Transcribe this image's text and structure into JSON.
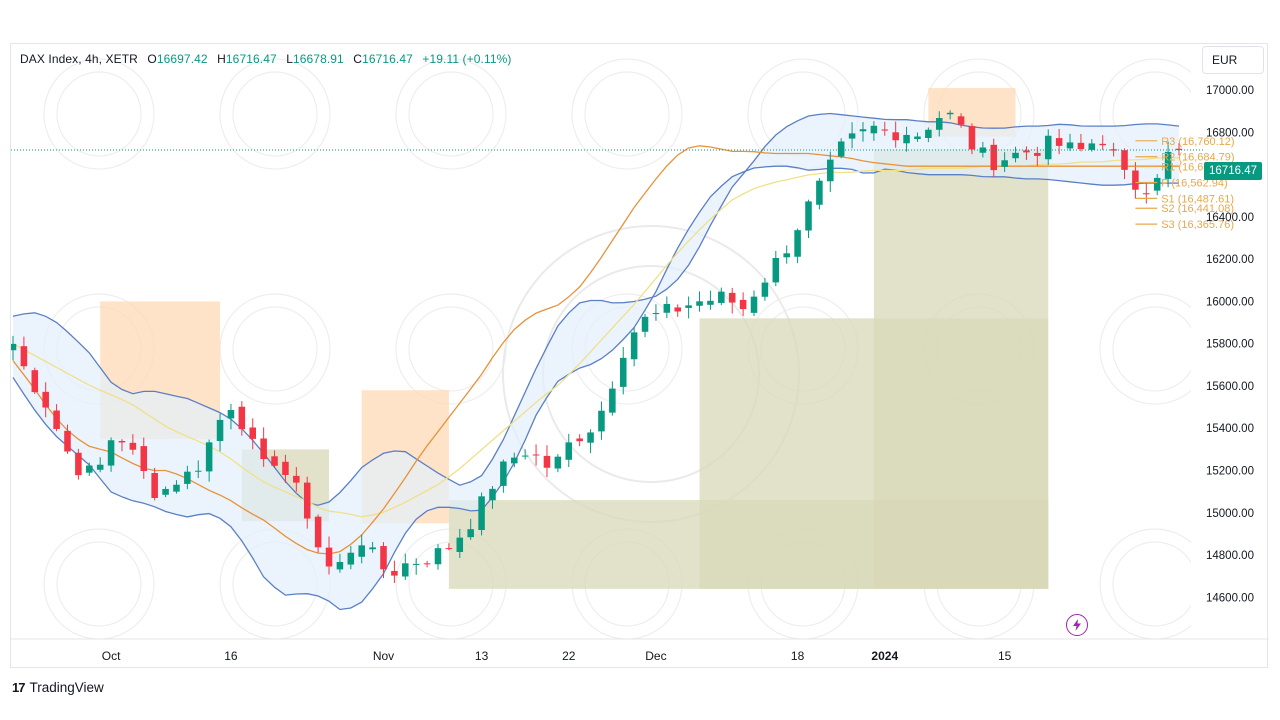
{
  "header": {
    "symbol": "DAX Index, 4h, XETR",
    "open_label": "O",
    "open": "16697.42",
    "high_label": "H",
    "high": "16716.47",
    "low_label": "L",
    "low": "16678.91",
    "close_label": "C",
    "close": "16716.47",
    "change": "+19.11 (+0.11%)"
  },
  "currency_button": {
    "label": "EUR"
  },
  "last_price_tag": "16716.47",
  "footer": {
    "logo_mark": "17",
    "logo_text": "TradingView"
  },
  "icons": {
    "bolt": "lightning-icon",
    "logo": "tradingview-logo-icon"
  },
  "colors": {
    "up": "#089981",
    "down": "#f23645",
    "bollinger": "#5b7fc7",
    "band_fill": "#e3f0fb",
    "ma_fast": "#e8923a",
    "ma_slow": "#f0e08a",
    "supply_zone": "#fdd9b5",
    "demand_zone": "#d8d8b8",
    "pivot": "#e8a84a"
  },
  "chart_data": {
    "type": "candlestick",
    "title": "",
    "timeframe": "4h",
    "y_axis": {
      "ticks": [
        "17000.00",
        "16800.00",
        "16600.00",
        "16400.00",
        "16200.00",
        "16000.00",
        "15800.00",
        "15600.00",
        "15400.00",
        "15200.00",
        "15000.00",
        "14800.00",
        "14600.00"
      ],
      "range": [
        14450,
        17100
      ],
      "position": "right"
    },
    "x_axis": {
      "ticks": [
        {
          "label": "Oct",
          "i": 9
        },
        {
          "label": "16",
          "i": 20
        },
        {
          "label": "Nov",
          "i": 34
        },
        {
          "label": "13",
          "i": 43
        },
        {
          "label": "22",
          "i": 51
        },
        {
          "label": "Dec",
          "i": 59
        },
        {
          "label": "18",
          "i": 72
        },
        {
          "label": "2024",
          "i": 80,
          "bold": true
        },
        {
          "label": "15",
          "i": 91
        }
      ],
      "visible_bars": 108
    },
    "pivot_levels": [
      {
        "name": "R3",
        "value": 16760.12,
        "label": "R3 (16,760.12)"
      },
      {
        "name": "R2",
        "value": 16684.79,
        "label": "R2 (16,684.79)"
      },
      {
        "name": "R1",
        "value": 16638.26,
        "label": "R1 (16,638.26)"
      },
      {
        "name": "P",
        "value": 16562.94,
        "label": "P (16,562.94)"
      },
      {
        "name": "S1",
        "value": 16487.61,
        "label": "S1 (16,487.61)"
      },
      {
        "name": "S2",
        "value": 16441.08,
        "label": "S2 (16,441.08)"
      },
      {
        "name": "S3",
        "value": 16365.76,
        "label": "S3 (16,365.76)"
      }
    ],
    "last_price": 16716.47,
    "close": [
      15800,
      15650,
      15560,
      15400,
      15250,
      15180,
      15220,
      15400,
      15300,
      15180,
      15080,
      15150,
      15180,
      15250,
      15420,
      15520,
      15400,
      15200,
      15260,
      15150,
      15040,
      14830,
      14700,
      14820,
      14880,
      14750,
      14720,
      14760,
      14780,
      14800,
      14850,
      14920,
      15020,
      15150,
      15240,
      15300,
      15260,
      15200,
      15310,
      15380,
      15420,
      15600,
      15800,
      15900,
      15930,
      15950,
      15980,
      16000,
      16010,
      16020,
      15960,
      16060,
      16150,
      16250,
      16380,
      16500,
      16620,
      16740,
      16780,
      16820,
      16800,
      16810,
      16790,
      16850,
      16900,
      16820,
      16720,
      16660,
      16680,
      16700,
      16720,
      16740,
      16740,
      16700,
      16750,
      16780,
      16600,
      16550,
      16550,
      16680,
      16716.47
    ],
    "upper_band": [
      15930,
      15950,
      15920,
      15840,
      15750,
      15620,
      15560,
      15580,
      15560,
      15540,
      15500,
      15460,
      15380,
      15270,
      15150,
      15050,
      15030,
      15110,
      15220,
      15280,
      15300,
      15240,
      15180,
      15130,
      15160,
      15300,
      15500,
      15700,
      15880,
      15990,
      16010,
      15990,
      16000,
      16020,
      16080,
      16200,
      16380,
      16540,
      16650,
      16770,
      16840,
      16880,
      16890,
      16880,
      16870,
      16860,
      16860,
      16850,
      16850,
      16830,
      16820,
      16820,
      16830,
      16830,
      16840,
      16830,
      16830,
      16830,
      16840,
      16840,
      16830
    ],
    "lower_band": [
      15640,
      15500,
      15380,
      15300,
      15220,
      15100,
      15060,
      15040,
      15000,
      14980,
      15000,
      14960,
      14840,
      14680,
      14610,
      14620,
      14600,
      14530,
      14580,
      14700,
      14880,
      15000,
      15030,
      15020,
      15000,
      15110,
      15270,
      15480,
      15620,
      15680,
      15710,
      15780,
      15880,
      16030,
      16220,
      16380,
      16510,
      16590,
      16630,
      16640,
      16640,
      16620,
      16630,
      16630,
      16600,
      16630,
      16610,
      16600,
      16600,
      16600,
      16590,
      16590,
      16580,
      16580,
      16570,
      16560,
      16550,
      16550,
      16560,
      16560,
      16560
    ],
    "ma_fast": [
      15720,
      15600,
      15470,
      15370,
      15310,
      15290,
      15240,
      15200,
      15200,
      15160,
      15110,
      15070,
      15010,
      14960,
      14890,
      14830,
      14800,
      14820,
      14900,
      15010,
      15140,
      15280,
      15400,
      15520,
      15640,
      15780,
      15890,
      15950,
      15980,
      16050,
      16170,
      16310,
      16450,
      16570,
      16680,
      16740,
      16730,
      16710,
      16710,
      16700,
      16700,
      16700,
      16690,
      16680,
      16660,
      16650,
      16640,
      16640,
      16640,
      16640,
      16640,
      16640,
      16640,
      16640,
      16640,
      16640,
      16640,
      16640,
      16640,
      16640,
      16640
    ],
    "ma_slow": [
      15800,
      15750,
      15700,
      15650,
      15600,
      15560,
      15520,
      15460,
      15400,
      15360,
      15320,
      15270,
      15200,
      15140,
      15100,
      15060,
      15010,
      15000,
      14980,
      15000,
      15040,
      15090,
      15140,
      15210,
      15290,
      15370,
      15450,
      15530,
      15600,
      15690,
      15790,
      15890,
      15990,
      16100,
      16210,
      16310,
      16400,
      16480,
      16530,
      16560,
      16580,
      16600,
      16610,
      16610,
      16620,
      16620,
      16620,
      16630,
      16630,
      16630,
      16640,
      16640,
      16640,
      16650,
      16650,
      16660,
      16660,
      16670,
      16670,
      16680,
      16680
    ]
  }
}
